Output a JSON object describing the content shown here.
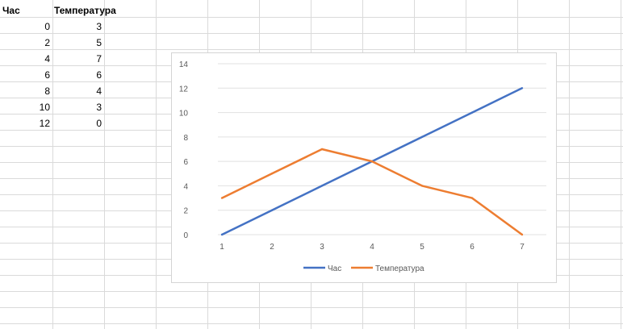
{
  "sheet": {
    "headers": [
      "Час",
      "Температура"
    ],
    "rows": [
      [
        "0",
        "3"
      ],
      [
        "2",
        "5"
      ],
      [
        "4",
        "7"
      ],
      [
        "6",
        "6"
      ],
      [
        "8",
        "4"
      ],
      [
        "10",
        "3"
      ],
      [
        "12",
        "0"
      ]
    ]
  },
  "chart_data": {
    "type": "line",
    "title": "",
    "xlabel": "",
    "ylabel": "",
    "categories": [
      "1",
      "2",
      "3",
      "4",
      "5",
      "6",
      "7"
    ],
    "ylim": [
      0,
      14
    ],
    "yticks": [
      "0",
      "2",
      "4",
      "6",
      "8",
      "10",
      "12",
      "14"
    ],
    "grid": true,
    "legend": "bottom",
    "series": [
      {
        "name": "Час",
        "values": [
          0,
          2,
          4,
          6,
          8,
          10,
          12
        ],
        "color": "#4472C4"
      },
      {
        "name": "Температура",
        "values": [
          3,
          5,
          7,
          6,
          4,
          3,
          0
        ],
        "color": "#ED7D31"
      }
    ]
  }
}
